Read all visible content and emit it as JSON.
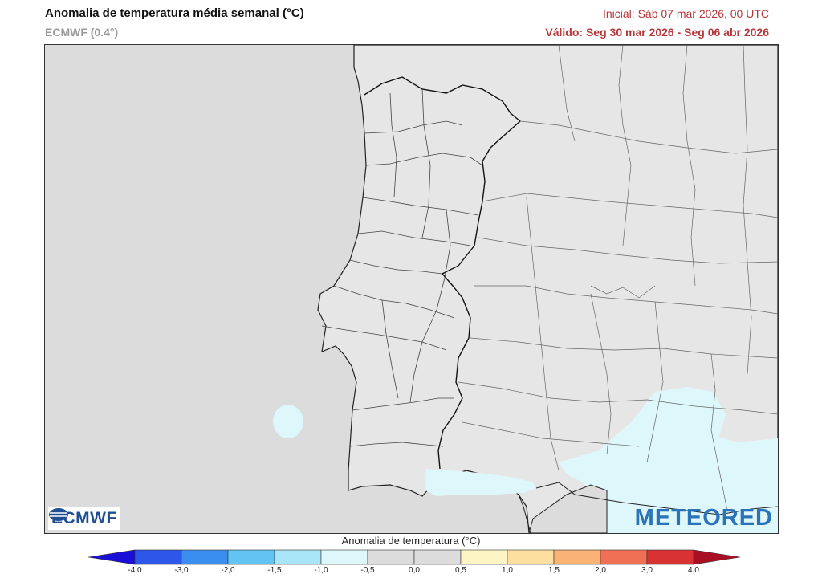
{
  "header": {
    "title": "Anomalia de temperatura média semanal (°C)",
    "model": "ECMWF (0.4°)",
    "initial": "Inicial: Sáb 07 mar 2026, 00 UTC",
    "valid": "Válido: Seg 30 mar 2026 - Seg 06 abr 2026"
  },
  "logos": {
    "left": "ECMWF",
    "right": "METEORED"
  },
  "legend": {
    "title": "Anomalia de temperatura (°C)",
    "ticks": [
      "-4,0",
      "-3,0",
      "-2,0",
      "-1,5",
      "-1,0",
      "-0,5",
      "0,0",
      "0,5",
      "1,0",
      "1,5",
      "2,0",
      "3,0",
      "4,0"
    ],
    "colors": [
      "#1a0fd6",
      "#2d57e8",
      "#3a8fee",
      "#61c4f2",
      "#a8e6f7",
      "#def7fb",
      "#dcdcdc",
      "#dcdcdc",
      "#fdf6c4",
      "#fde0a0",
      "#fbb275",
      "#f07055",
      "#d83232",
      "#a80f25"
    ]
  },
  "map": {
    "ocean_color": "#dcdcdc",
    "land_color": "#e4e4e4",
    "anomaly_color": "#def7fb",
    "border_color": "#111111"
  }
}
